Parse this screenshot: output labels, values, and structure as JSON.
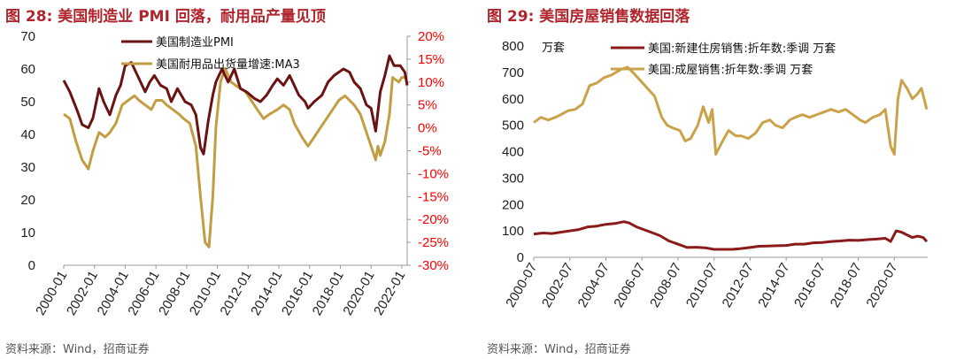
{
  "colors": {
    "title": "#b0252d",
    "pmi": "#6b1313",
    "durable": "#c29d43",
    "newhome": "#8b1a1a",
    "existing": "#c9a24a",
    "right_axis": "#ff0000"
  },
  "left_panel": {
    "title": "图 28:  美国制造业 PMI 回落，耐用品产量见顶",
    "source": "资料来源：Wind，招商证券"
  },
  "right_panel": {
    "title": "图 29:  美国房屋销售数据回落",
    "source": "资料来源：Wind，招商证券"
  },
  "chart_data": [
    {
      "type": "line",
      "title": "图 28:  美国制造业 PMI 回落，耐用品产量见顶",
      "x_tick_labels": [
        "2000-01",
        "2002-01",
        "2004-01",
        "2006-01",
        "2008-01",
        "2010-01",
        "2012-01",
        "2014-01",
        "2016-01",
        "2018-01",
        "2020-01",
        "2022-01"
      ],
      "y_left": {
        "range": [
          0,
          70
        ],
        "ticks": [
          "70",
          "60",
          "50",
          "40",
          "30",
          "20",
          "10",
          "0"
        ]
      },
      "y_right": {
        "range": [
          -30,
          20
        ],
        "ticks": [
          "20%",
          "15%",
          "10%",
          "5%",
          "0%",
          "-5%",
          "-10%",
          "-15%",
          "-20%",
          "-25%",
          "-30%"
        ]
      },
      "legend": [
        "美国制造业PMI",
        "美国耐用品出货量增速:MA3"
      ],
      "series": [
        {
          "name": "美国制造业PMI",
          "axis": "left",
          "points": [
            [
              2000.0,
              56.5
            ],
            [
              2000.4,
              53
            ],
            [
              2000.9,
              47
            ],
            [
              2001.2,
              43
            ],
            [
              2001.6,
              42
            ],
            [
              2001.9,
              45
            ],
            [
              2002.3,
              54
            ],
            [
              2002.6,
              50
            ],
            [
              2003.0,
              46
            ],
            [
              2003.4,
              52
            ],
            [
              2003.7,
              55
            ],
            [
              2004.0,
              61
            ],
            [
              2004.4,
              62
            ],
            [
              2004.9,
              57
            ],
            [
              2005.3,
              53
            ],
            [
              2005.6,
              56
            ],
            [
              2005.9,
              58
            ],
            [
              2006.3,
              55
            ],
            [
              2006.7,
              54
            ],
            [
              2007.0,
              50
            ],
            [
              2007.4,
              54
            ],
            [
              2007.9,
              50
            ],
            [
              2008.3,
              49
            ],
            [
              2008.6,
              46
            ],
            [
              2008.9,
              36
            ],
            [
              2009.1,
              34
            ],
            [
              2009.4,
              44
            ],
            [
              2009.7,
              52
            ],
            [
              2009.9,
              56
            ],
            [
              2010.3,
              60
            ],
            [
              2010.7,
              56
            ],
            [
              2011.1,
              60
            ],
            [
              2011.5,
              54
            ],
            [
              2011.9,
              53
            ],
            [
              2012.4,
              51
            ],
            [
              2012.8,
              50
            ],
            [
              2013.2,
              52
            ],
            [
              2013.6,
              55
            ],
            [
              2013.9,
              57
            ],
            [
              2014.3,
              55
            ],
            [
              2014.7,
              58
            ],
            [
              2014.9,
              56
            ],
            [
              2015.3,
              52
            ],
            [
              2015.7,
              50
            ],
            [
              2015.9,
              48
            ],
            [
              2016.3,
              50
            ],
            [
              2016.8,
              52
            ],
            [
              2017.2,
              56
            ],
            [
              2017.6,
              58
            ],
            [
              2017.9,
              59
            ],
            [
              2018.2,
              60
            ],
            [
              2018.6,
              59
            ],
            [
              2018.9,
              56
            ],
            [
              2019.3,
              54
            ],
            [
              2019.7,
              49
            ],
            [
              2020.0,
              48
            ],
            [
              2020.3,
              41
            ],
            [
              2020.6,
              53
            ],
            [
              2020.9,
              58
            ],
            [
              2021.2,
              64
            ],
            [
              2021.5,
              61
            ],
            [
              2021.9,
              61
            ],
            [
              2022.2,
              59
            ],
            [
              2022.35,
              55
            ]
          ]
        },
        {
          "name": "美国耐用品出货量增速:MA3",
          "axis": "right",
          "points": [
            [
              2000.0,
              3
            ],
            [
              2000.4,
              2
            ],
            [
              2000.8,
              -3
            ],
            [
              2001.2,
              -7
            ],
            [
              2001.6,
              -9
            ],
            [
              2001.9,
              -5
            ],
            [
              2002.3,
              -1
            ],
            [
              2002.7,
              -2
            ],
            [
              2003.0,
              -1
            ],
            [
              2003.4,
              1
            ],
            [
              2003.8,
              5
            ],
            [
              2004.2,
              6
            ],
            [
              2004.6,
              7
            ],
            [
              2004.9,
              6
            ],
            [
              2005.3,
              5
            ],
            [
              2005.7,
              4
            ],
            [
              2006.0,
              6
            ],
            [
              2006.4,
              6
            ],
            [
              2006.7,
              5
            ],
            [
              2007.1,
              4
            ],
            [
              2007.5,
              3
            ],
            [
              2007.8,
              2
            ],
            [
              2008.2,
              1
            ],
            [
              2008.6,
              -4
            ],
            [
              2008.9,
              -15
            ],
            [
              2009.2,
              -25
            ],
            [
              2009.45,
              -26
            ],
            [
              2009.7,
              -15
            ],
            [
              2009.9,
              0
            ],
            [
              2010.2,
              10
            ],
            [
              2010.5,
              13
            ],
            [
              2010.9,
              10
            ],
            [
              2011.3,
              9
            ],
            [
              2011.8,
              8
            ],
            [
              2012.2,
              6
            ],
            [
              2012.6,
              4
            ],
            [
              2013.0,
              2
            ],
            [
              2013.4,
              3
            ],
            [
              2013.9,
              4
            ],
            [
              2014.3,
              5
            ],
            [
              2014.7,
              4
            ],
            [
              2015.0,
              1
            ],
            [
              2015.5,
              -2
            ],
            [
              2015.9,
              -4
            ],
            [
              2016.3,
              -2
            ],
            [
              2016.7,
              0
            ],
            [
              2017.1,
              2
            ],
            [
              2017.5,
              4
            ],
            [
              2017.9,
              6
            ],
            [
              2018.3,
              7
            ],
            [
              2018.6,
              6
            ],
            [
              2018.9,
              5
            ],
            [
              2019.3,
              3
            ],
            [
              2019.7,
              -1
            ],
            [
              2020.0,
              -4
            ],
            [
              2020.3,
              -7
            ],
            [
              2020.45,
              -4
            ],
            [
              2020.6,
              -6
            ],
            [
              2020.9,
              -3
            ],
            [
              2021.2,
              3
            ],
            [
              2021.4,
              11
            ],
            [
              2021.8,
              10
            ],
            [
              2022.0,
              11
            ],
            [
              2022.3,
              11
            ]
          ]
        }
      ]
    },
    {
      "type": "line",
      "title": "图 29:  美国房屋销售数据回落",
      "unit_label": "万套",
      "x_tick_labels": [
        "2000-07",
        "2002-07",
        "2004-07",
        "2006-07",
        "2008-07",
        "2010-07",
        "2012-07",
        "2014-07",
        "2016-07",
        "2018-07",
        "2020-07"
      ],
      "y": {
        "range": [
          0,
          800
        ],
        "ticks": [
          "800",
          "700",
          "600",
          "500",
          "400",
          "300",
          "200",
          "100",
          "0"
        ]
      },
      "legend": [
        "美国:新建住房销售:折年数:季调 万套",
        "美国:成屋销售:折年数:季调 万套"
      ],
      "series": [
        {
          "name": "美国:新建住房销售:折年数:季调 万套",
          "points": [
            [
              2000.5,
              88
            ],
            [
              2001.0,
              92
            ],
            [
              2001.5,
              90
            ],
            [
              2002.0,
              95
            ],
            [
              2002.5,
              100
            ],
            [
              2003.0,
              105
            ],
            [
              2003.5,
              115
            ],
            [
              2004.0,
              118
            ],
            [
              2004.5,
              125
            ],
            [
              2005.0,
              128
            ],
            [
              2005.5,
              135
            ],
            [
              2005.8,
              130
            ],
            [
              2006.2,
              115
            ],
            [
              2006.6,
              105
            ],
            [
              2007.0,
              95
            ],
            [
              2007.5,
              82
            ],
            [
              2008.0,
              62
            ],
            [
              2008.5,
              50
            ],
            [
              2009.0,
              37
            ],
            [
              2009.5,
              38
            ],
            [
              2010.0,
              36
            ],
            [
              2010.5,
              30
            ],
            [
              2011.0,
              30
            ],
            [
              2011.5,
              30
            ],
            [
              2012.0,
              33
            ],
            [
              2012.5,
              37
            ],
            [
              2013.0,
              42
            ],
            [
              2013.5,
              43
            ],
            [
              2014.0,
              44
            ],
            [
              2014.5,
              45
            ],
            [
              2015.0,
              50
            ],
            [
              2015.5,
              50
            ],
            [
              2016.0,
              55
            ],
            [
              2016.5,
              56
            ],
            [
              2017.0,
              60
            ],
            [
              2017.5,
              62
            ],
            [
              2018.0,
              65
            ],
            [
              2018.5,
              64
            ],
            [
              2019.0,
              67
            ],
            [
              2019.5,
              69
            ],
            [
              2020.0,
              72
            ],
            [
              2020.3,
              60
            ],
            [
              2020.6,
              100
            ],
            [
              2020.9,
              95
            ],
            [
              2021.2,
              85
            ],
            [
              2021.5,
              75
            ],
            [
              2021.8,
              80
            ],
            [
              2022.1,
              75
            ],
            [
              2022.3,
              60
            ]
          ]
        },
        {
          "name": "美国:成屋销售:折年数:季调 万套",
          "points": [
            [
              2000.5,
              510
            ],
            [
              2000.9,
              530
            ],
            [
              2001.3,
              520
            ],
            [
              2001.7,
              530
            ],
            [
              2002.0,
              540
            ],
            [
              2002.4,
              555
            ],
            [
              2002.8,
              560
            ],
            [
              2003.2,
              580
            ],
            [
              2003.6,
              650
            ],
            [
              2004.0,
              660
            ],
            [
              2004.4,
              680
            ],
            [
              2004.8,
              690
            ],
            [
              2005.3,
              710
            ],
            [
              2005.7,
              720
            ],
            [
              2006.0,
              700
            ],
            [
              2006.4,
              670
            ],
            [
              2006.8,
              640
            ],
            [
              2007.2,
              610
            ],
            [
              2007.6,
              530
            ],
            [
              2007.9,
              500
            ],
            [
              2008.2,
              490
            ],
            [
              2008.6,
              480
            ],
            [
              2008.9,
              440
            ],
            [
              2009.2,
              450
            ],
            [
              2009.6,
              500
            ],
            [
              2009.9,
              570
            ],
            [
              2010.2,
              510
            ],
            [
              2010.4,
              560
            ],
            [
              2010.6,
              390
            ],
            [
              2010.9,
              430
            ],
            [
              2011.3,
              480
            ],
            [
              2011.7,
              460
            ],
            [
              2012.0,
              460
            ],
            [
              2012.4,
              450
            ],
            [
              2012.8,
              470
            ],
            [
              2013.2,
              510
            ],
            [
              2013.6,
              520
            ],
            [
              2013.9,
              500
            ],
            [
              2014.3,
              490
            ],
            [
              2014.7,
              520
            ],
            [
              2015.0,
              530
            ],
            [
              2015.4,
              540
            ],
            [
              2015.8,
              530
            ],
            [
              2016.2,
              540
            ],
            [
              2016.6,
              550
            ],
            [
              2017.0,
              560
            ],
            [
              2017.4,
              550
            ],
            [
              2017.8,
              560
            ],
            [
              2018.2,
              540
            ],
            [
              2018.6,
              520
            ],
            [
              2018.9,
              510
            ],
            [
              2019.3,
              530
            ],
            [
              2019.7,
              540
            ],
            [
              2020.0,
              560
            ],
            [
              2020.3,
              420
            ],
            [
              2020.5,
              390
            ],
            [
              2020.7,
              600
            ],
            [
              2020.9,
              670
            ],
            [
              2021.2,
              640
            ],
            [
              2021.5,
              600
            ],
            [
              2021.8,
              620
            ],
            [
              2022.0,
              640
            ],
            [
              2022.3,
              560
            ]
          ]
        }
      ]
    }
  ]
}
